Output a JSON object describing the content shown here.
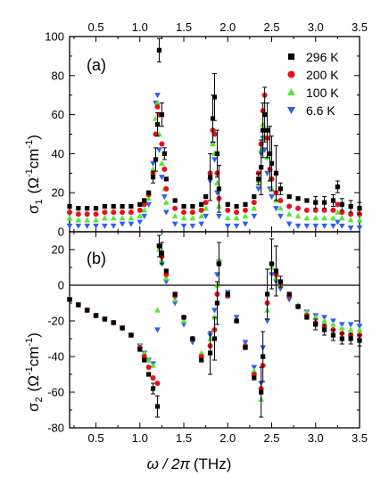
{
  "chart_data": [
    {
      "type": "scatter",
      "panel": "(a)",
      "ylabel_main": "σ",
      "ylabel_sub": "1",
      "ylabel_unit_open": "(Ω",
      "ylabel_sup1": "-1",
      "ylabel_mid": "cm",
      "ylabel_sup2": "-1",
      "ylabel_close": ")",
      "xlim": [
        0.2,
        3.5
      ],
      "ylim": [
        0,
        100
      ],
      "xticks": [
        "0.5",
        "1.0",
        "1.5",
        "2.0",
        "2.5",
        "3.0",
        "3.5"
      ],
      "yticks": [
        "0",
        "20",
        "40",
        "60",
        "80",
        "100"
      ],
      "legend_placement": "top-right",
      "series": [
        {
          "name": "296 K",
          "color": "#000000",
          "marker": "square",
          "x": [
            0.2,
            0.3,
            0.4,
            0.5,
            0.6,
            0.7,
            0.8,
            0.9,
            1.0,
            1.05,
            1.1,
            1.15,
            1.18,
            1.2,
            1.22,
            1.25,
            1.28,
            1.3,
            1.4,
            1.5,
            1.6,
            1.7,
            1.75,
            1.8,
            1.83,
            1.85,
            1.88,
            1.9,
            2.0,
            2.1,
            2.2,
            2.3,
            2.35,
            2.38,
            2.4,
            2.42,
            2.45,
            2.48,
            2.5,
            2.55,
            2.6,
            2.7,
            2.8,
            2.9,
            3.0,
            3.1,
            3.2,
            3.25,
            3.3,
            3.4,
            3.5
          ],
          "y": [
            13,
            12,
            12,
            12,
            13,
            13,
            13,
            13,
            14,
            16,
            20,
            28,
            37,
            55,
            93,
            60,
            40,
            27,
            16,
            13,
            13,
            14,
            18,
            28,
            58,
            69,
            40,
            22,
            14,
            13,
            14,
            18,
            27,
            33,
            52,
            60,
            52,
            40,
            35,
            30,
            22,
            18,
            17,
            16,
            15,
            15,
            16,
            23,
            14,
            13,
            12
          ]
        },
        {
          "name": "200 K",
          "color": "#e8121c",
          "marker": "circle",
          "x": [
            0.2,
            0.3,
            0.4,
            0.5,
            0.6,
            0.7,
            0.8,
            0.9,
            1.0,
            1.05,
            1.1,
            1.15,
            1.18,
            1.2,
            1.22,
            1.25,
            1.28,
            1.3,
            1.4,
            1.5,
            1.6,
            1.7,
            1.75,
            1.8,
            1.83,
            1.85,
            1.88,
            1.9,
            2.0,
            2.1,
            2.2,
            2.3,
            2.35,
            2.38,
            2.4,
            2.42,
            2.45,
            2.48,
            2.5,
            2.55,
            2.6,
            2.7,
            2.8,
            2.9,
            3.0,
            3.1,
            3.2,
            3.25,
            3.3,
            3.4,
            3.5
          ],
          "y": [
            10,
            9,
            9,
            9,
            10,
            10,
            10,
            10,
            11,
            14,
            19,
            30,
            50,
            64,
            60,
            45,
            32,
            22,
            12,
            10,
            10,
            11,
            15,
            30,
            52,
            50,
            30,
            17,
            11,
            10,
            11,
            15,
            30,
            45,
            62,
            70,
            48,
            32,
            27,
            20,
            16,
            13,
            12,
            11,
            11,
            11,
            11,
            14,
            10,
            9,
            9
          ]
        },
        {
          "name": "100 K",
          "color": "#55e832",
          "marker": "triangle-up",
          "x": [
            0.2,
            0.3,
            0.4,
            0.5,
            0.6,
            0.7,
            0.8,
            0.9,
            1.0,
            1.05,
            1.1,
            1.15,
            1.18,
            1.2,
            1.22,
            1.25,
            1.28,
            1.3,
            1.4,
            1.5,
            1.6,
            1.7,
            1.75,
            1.8,
            1.83,
            1.85,
            1.88,
            1.9,
            2.0,
            2.1,
            2.2,
            2.3,
            2.35,
            2.38,
            2.4,
            2.42,
            2.45,
            2.48,
            2.5,
            2.55,
            2.6,
            2.7,
            2.8,
            2.9,
            3.0,
            3.1,
            3.2,
            3.25,
            3.3,
            3.4,
            3.5
          ],
          "y": [
            7,
            6,
            6,
            6,
            7,
            7,
            7,
            7,
            8,
            11,
            17,
            32,
            58,
            66,
            50,
            35,
            22,
            15,
            8,
            7,
            7,
            8,
            12,
            28,
            45,
            40,
            25,
            13,
            7,
            7,
            8,
            12,
            26,
            42,
            55,
            48,
            38,
            27,
            22,
            16,
            12,
            9,
            8,
            7,
            7,
            7,
            7,
            10,
            7,
            6,
            6
          ]
        },
        {
          "name": "6.6 K",
          "color": "#2f5ff2",
          "marker": "triangle-down",
          "x": [
            0.2,
            0.3,
            0.4,
            0.5,
            0.6,
            0.7,
            0.8,
            0.9,
            1.0,
            1.05,
            1.1,
            1.15,
            1.18,
            1.2,
            1.22,
            1.25,
            1.28,
            1.3,
            1.4,
            1.5,
            1.6,
            1.7,
            1.75,
            1.8,
            1.83,
            1.85,
            1.88,
            1.9,
            2.0,
            2.1,
            2.2,
            2.3,
            2.35,
            2.38,
            2.4,
            2.42,
            2.45,
            2.48,
            2.5,
            2.55,
            2.6,
            2.7,
            2.8,
            2.9,
            3.0,
            3.1,
            3.2,
            3.25,
            3.3,
            3.4,
            3.5
          ],
          "y": [
            3,
            3,
            3,
            3,
            3,
            3,
            4,
            4,
            5,
            8,
            14,
            35,
            66,
            70,
            42,
            28,
            18,
            10,
            4,
            3,
            3,
            4,
            8,
            26,
            45,
            37,
            20,
            8,
            3,
            3,
            4,
            8,
            22,
            40,
            48,
            42,
            30,
            22,
            18,
            12,
            8,
            4,
            3,
            3,
            3,
            3,
            3,
            5,
            3,
            2,
            2
          ]
        }
      ]
    },
    {
      "type": "scatter",
      "panel": "(b)",
      "ylabel_main": "σ",
      "ylabel_sub": "2",
      "ylabel_unit_open": "(Ω",
      "ylabel_sup1": "-1",
      "ylabel_mid": "cm",
      "ylabel_sup2": "-1",
      "ylabel_close": ")",
      "xlabel_main": "ω / 2π",
      "xlabel_unit": "(THz)",
      "xlim": [
        0.2,
        3.5
      ],
      "ylim": [
        -80,
        30
      ],
      "xticks": [
        "0.5",
        "1.0",
        "1.5",
        "2.0",
        "2.5",
        "3.0",
        "3.5"
      ],
      "yticks": [
        "20",
        "0",
        "-20",
        "-40",
        "-60",
        "-80"
      ],
      "series": [
        {
          "name": "296 K",
          "color": "#000000",
          "marker": "square",
          "x": [
            0.2,
            0.3,
            0.4,
            0.5,
            0.6,
            0.7,
            0.8,
            0.9,
            1.0,
            1.05,
            1.1,
            1.15,
            1.2,
            1.22,
            1.25,
            1.3,
            1.4,
            1.5,
            1.6,
            1.7,
            1.8,
            1.85,
            1.88,
            1.9,
            2.0,
            2.1,
            2.2,
            2.3,
            2.38,
            2.4,
            2.45,
            2.5,
            2.55,
            2.6,
            2.7,
            2.8,
            2.9,
            3.0,
            3.1,
            3.2,
            3.3,
            3.4,
            3.5
          ],
          "y": [
            -8,
            -11,
            -14,
            -17,
            -19,
            -21,
            -24,
            -28,
            -36,
            -42,
            -50,
            -58,
            -68,
            22,
            18,
            8,
            -5,
            -18,
            -30,
            -42,
            -38,
            -30,
            -10,
            12,
            -5,
            -20,
            -35,
            -52,
            -60,
            -40,
            -5,
            12,
            8,
            2,
            -5,
            -12,
            -18,
            -22,
            -25,
            -28,
            -30,
            -30,
            -31
          ]
        },
        {
          "name": "200 K",
          "color": "#e8121c",
          "marker": "circle",
          "x": [
            0.2,
            0.3,
            0.4,
            0.5,
            0.6,
            0.7,
            0.8,
            0.9,
            1.0,
            1.05,
            1.1,
            1.15,
            1.2,
            1.22,
            1.25,
            1.3,
            1.4,
            1.5,
            1.6,
            1.7,
            1.8,
            1.85,
            1.88,
            1.9,
            2.0,
            2.1,
            2.2,
            2.3,
            2.38,
            2.4,
            2.45,
            2.5,
            2.55,
            2.6,
            2.7,
            2.8,
            2.9,
            3.0,
            3.1,
            3.2,
            3.3,
            3.4,
            3.5
          ],
          "y": [
            -8,
            -11,
            -14,
            -17,
            -19,
            -21,
            -24,
            -28,
            -35,
            -40,
            -46,
            -52,
            -55,
            22,
            16,
            6,
            -6,
            -18,
            -30,
            -40,
            -34,
            -25,
            -5,
            12,
            -6,
            -20,
            -34,
            -50,
            -58,
            -45,
            -10,
            12,
            6,
            1,
            -6,
            -12,
            -17,
            -21,
            -23,
            -25,
            -27,
            -28,
            -28
          ]
        },
        {
          "name": "100 K",
          "color": "#55e832",
          "marker": "triangle-up",
          "x": [
            0.2,
            0.3,
            0.4,
            0.5,
            0.6,
            0.7,
            0.8,
            0.9,
            1.0,
            1.05,
            1.1,
            1.15,
            1.2,
            1.22,
            1.25,
            1.3,
            1.4,
            1.5,
            1.6,
            1.7,
            1.8,
            1.85,
            1.88,
            1.9,
            2.0,
            2.1,
            2.2,
            2.3,
            2.38,
            2.4,
            2.45,
            2.5,
            2.55,
            2.6,
            2.7,
            2.8,
            2.9,
            3.0,
            3.1,
            3.2,
            3.3,
            3.4,
            3.5
          ],
          "y": [
            -8,
            -11,
            -14,
            -17,
            -19,
            -21,
            -24,
            -28,
            -34,
            -38,
            -42,
            -45,
            -14,
            20,
            14,
            4,
            -8,
            -20,
            -30,
            -38,
            -30,
            -18,
            0,
            14,
            -6,
            -20,
            -34,
            -48,
            -64,
            -40,
            -14,
            10,
            4,
            0,
            -6,
            -11,
            -15,
            -18,
            -20,
            -22,
            -24,
            -25,
            -25
          ]
        },
        {
          "name": "6.6 K",
          "color": "#2f5ff2",
          "marker": "triangle-down",
          "x": [
            0.2,
            0.3,
            0.4,
            0.5,
            0.6,
            0.7,
            0.8,
            0.9,
            1.0,
            1.05,
            1.1,
            1.15,
            1.2,
            1.22,
            1.25,
            1.3,
            1.4,
            1.5,
            1.6,
            1.7,
            1.8,
            1.85,
            1.88,
            1.9,
            2.0,
            2.1,
            2.2,
            2.3,
            2.38,
            2.4,
            2.45,
            2.5,
            2.55,
            2.6,
            2.7,
            2.8,
            2.9,
            3.0,
            3.1,
            3.2,
            3.3,
            3.4,
            3.5
          ],
          "y": [
            -8,
            -11,
            -14,
            -17,
            -19,
            -21,
            -24,
            -28,
            -34,
            -38,
            -42,
            -44,
            -25,
            22,
            12,
            2,
            -10,
            -22,
            -32,
            -40,
            -28,
            -14,
            6,
            13,
            -4,
            -18,
            -32,
            -46,
            -55,
            -35,
            -20,
            6,
            2,
            -2,
            -8,
            -12,
            -15,
            -17,
            -18,
            -20,
            -22,
            -22,
            -23
          ]
        }
      ]
    }
  ]
}
